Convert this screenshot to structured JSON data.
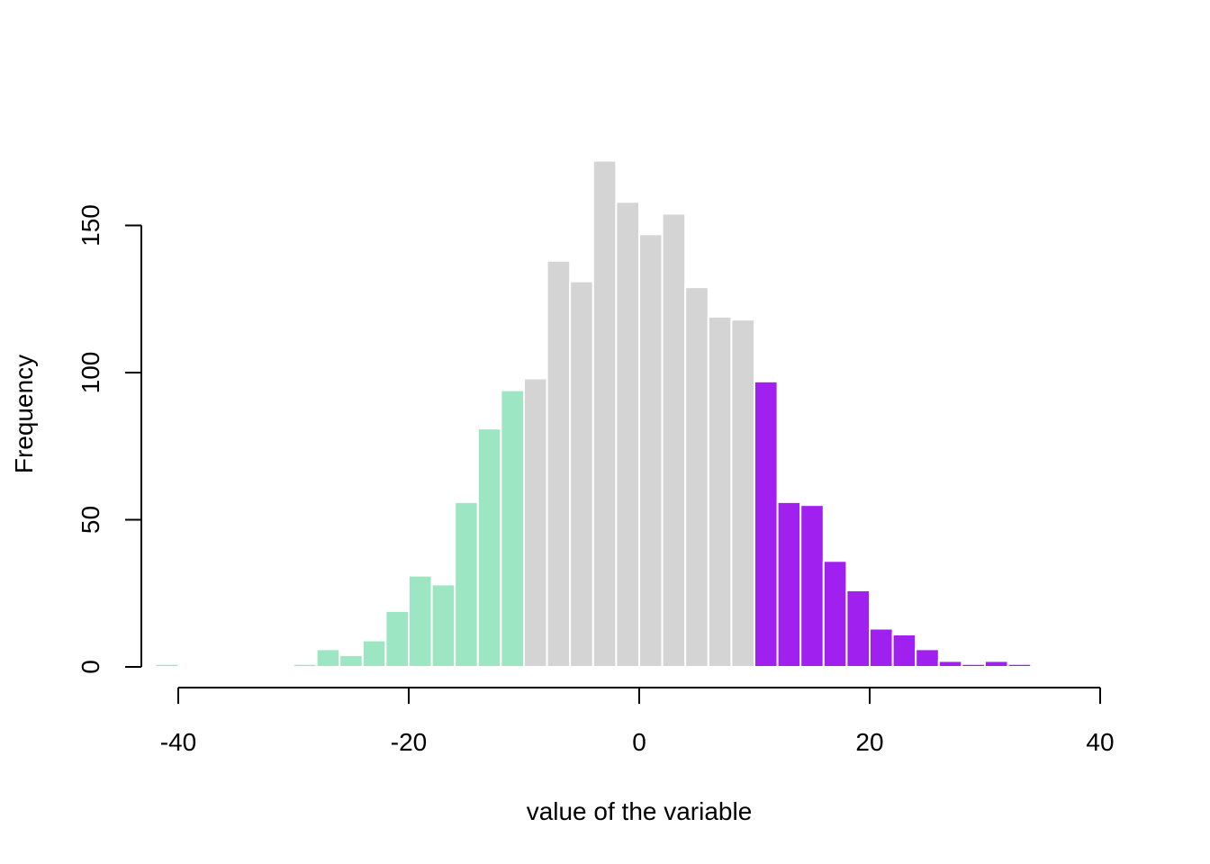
{
  "chart_data": {
    "type": "bar",
    "subtype": "histogram",
    "title": "",
    "xlabel": "value of the variable",
    "ylabel": "Frequency",
    "xlim": [
      -40,
      40
    ],
    "ylim": [
      0,
      175
    ],
    "x_ticks": [
      -40,
      -20,
      0,
      20,
      40
    ],
    "y_ticks": [
      0,
      50,
      100,
      150
    ],
    "x_tick_labels": [
      "-40",
      "-20",
      "0",
      "20",
      "40"
    ],
    "y_tick_labels": [
      "0",
      "50",
      "100",
      "150"
    ],
    "grid": false,
    "legend": "none",
    "colors": {
      "low_tail": "#9de6c3",
      "middle": "#d4d4d4",
      "high_tail": "#a020f0",
      "bar_border": "#ffffff"
    },
    "bins": [
      {
        "x0": -42,
        "x1": -40,
        "count": 1,
        "group": "low_tail"
      },
      {
        "x0": -30,
        "x1": -28,
        "count": 1,
        "group": "low_tail"
      },
      {
        "x0": -28,
        "x1": -26,
        "count": 6,
        "group": "low_tail"
      },
      {
        "x0": -26,
        "x1": -24,
        "count": 4,
        "group": "low_tail"
      },
      {
        "x0": -24,
        "x1": -22,
        "count": 9,
        "group": "low_tail"
      },
      {
        "x0": -22,
        "x1": -20,
        "count": 19,
        "group": "low_tail"
      },
      {
        "x0": -20,
        "x1": -18,
        "count": 31,
        "group": "low_tail"
      },
      {
        "x0": -18,
        "x1": -16,
        "count": 28,
        "group": "low_tail"
      },
      {
        "x0": -16,
        "x1": -14,
        "count": 56,
        "group": "low_tail"
      },
      {
        "x0": -14,
        "x1": -12,
        "count": 81,
        "group": "low_tail"
      },
      {
        "x0": -12,
        "x1": -10,
        "count": 94,
        "group": "low_tail"
      },
      {
        "x0": -10,
        "x1": -8,
        "count": 98,
        "group": "middle"
      },
      {
        "x0": -8,
        "x1": -6,
        "count": 138,
        "group": "middle"
      },
      {
        "x0": -6,
        "x1": -4,
        "count": 131,
        "group": "middle"
      },
      {
        "x0": -4,
        "x1": -2,
        "count": 172,
        "group": "middle"
      },
      {
        "x0": -2,
        "x1": 0,
        "count": 158,
        "group": "middle"
      },
      {
        "x0": 0,
        "x1": 2,
        "count": 147,
        "group": "middle"
      },
      {
        "x0": 2,
        "x1": 4,
        "count": 154,
        "group": "middle"
      },
      {
        "x0": 4,
        "x1": 6,
        "count": 129,
        "group": "middle"
      },
      {
        "x0": 6,
        "x1": 8,
        "count": 119,
        "group": "middle"
      },
      {
        "x0": 8,
        "x1": 10,
        "count": 118,
        "group": "middle"
      },
      {
        "x0": 10,
        "x1": 12,
        "count": 97,
        "group": "high_tail"
      },
      {
        "x0": 12,
        "x1": 14,
        "count": 56,
        "group": "high_tail"
      },
      {
        "x0": 14,
        "x1": 16,
        "count": 55,
        "group": "high_tail"
      },
      {
        "x0": 16,
        "x1": 18,
        "count": 36,
        "group": "high_tail"
      },
      {
        "x0": 18,
        "x1": 20,
        "count": 26,
        "group": "high_tail"
      },
      {
        "x0": 20,
        "x1": 22,
        "count": 13,
        "group": "high_tail"
      },
      {
        "x0": 22,
        "x1": 24,
        "count": 11,
        "group": "high_tail"
      },
      {
        "x0": 24,
        "x1": 26,
        "count": 6,
        "group": "high_tail"
      },
      {
        "x0": 26,
        "x1": 28,
        "count": 2,
        "group": "high_tail"
      },
      {
        "x0": 28,
        "x1": 30,
        "count": 1,
        "group": "high_tail"
      },
      {
        "x0": 30,
        "x1": 32,
        "count": 2,
        "group": "high_tail"
      },
      {
        "x0": 32,
        "x1": 34,
        "count": 1,
        "group": "high_tail"
      }
    ]
  }
}
